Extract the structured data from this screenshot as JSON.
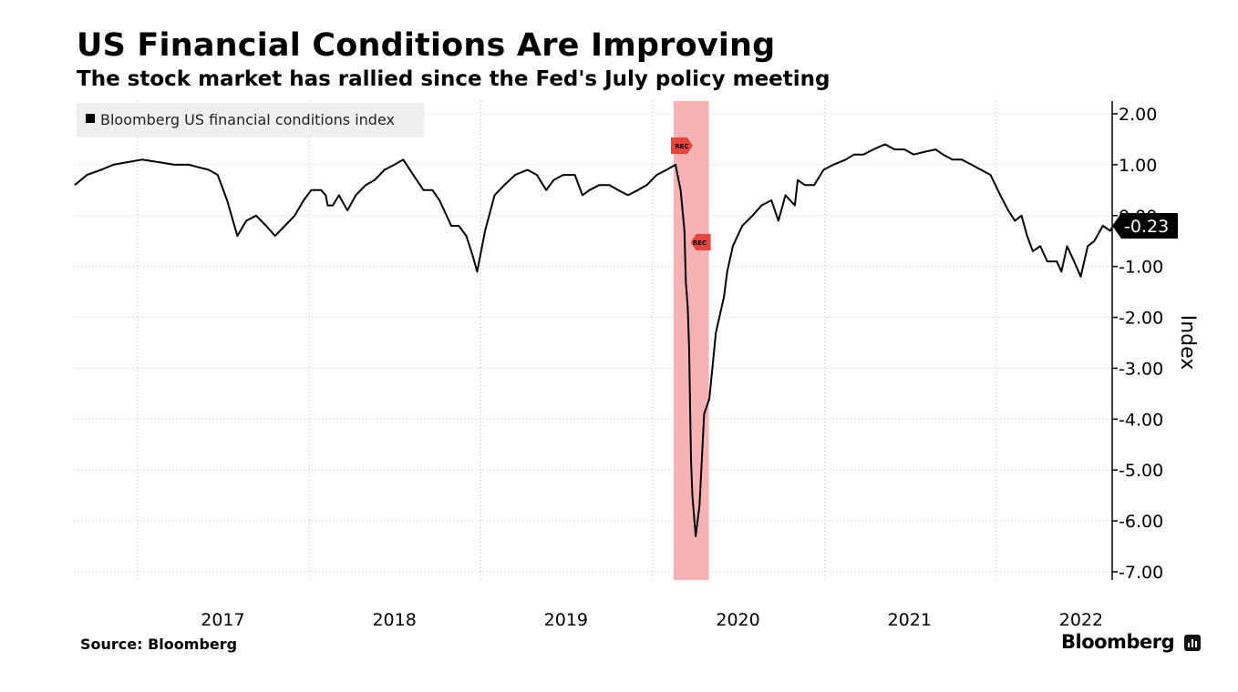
{
  "header": {
    "title": "US Financial Conditions Are Improving",
    "subtitle": "The stock market has rallied since the Fed's July policy meeting"
  },
  "footer": {
    "source": "Source: Bloomberg",
    "brand": "Bloomberg"
  },
  "chart_data": {
    "type": "line",
    "title": "US Financial Conditions Are Improving",
    "subtitle": "The stock market has rallied since the Fed's July policy meeting",
    "ylabel": "Index",
    "ylim": [
      -7,
      2
    ],
    "yticks": [
      2,
      1,
      0,
      -1,
      -2,
      -3,
      -4,
      -5,
      -6,
      -7
    ],
    "ytick_labels": [
      "2.00",
      "1.00",
      "0.00",
      "-1.00",
      "-2.00",
      "-3.00",
      "-4.00",
      "-5.00",
      "-6.00",
      "-7.00"
    ],
    "xlim": [
      "2016-08-20",
      "2022-09-05"
    ],
    "xticks": [
      "2017",
      "2018",
      "2019",
      "2020",
      "2021",
      "2022"
    ],
    "legend": {
      "position": "top-left",
      "entries": [
        "Bloomberg US financial conditions index"
      ]
    },
    "last_value_label": "-0.23",
    "recession": {
      "start": "2020-02-15",
      "end": "2020-04-30",
      "label": "REC"
    },
    "grid": true,
    "colors": {
      "line": "#000000",
      "recession": "#f7b3b3",
      "rec_marker": "#e8453c",
      "legend_bg": "#efefef"
    },
    "series": [
      {
        "name": "Bloomberg US financial conditions index",
        "x": [
          "2016-08-20",
          "2016-09-15",
          "2016-10-15",
          "2016-11-10",
          "2016-12-10",
          "2017-01-10",
          "2017-02-15",
          "2017-03-20",
          "2017-04-20",
          "2017-05-10",
          "2017-06-01",
          "2017-06-20",
          "2017-07-10",
          "2017-08-01",
          "2017-08-20",
          "2017-09-10",
          "2017-10-01",
          "2017-10-20",
          "2017-11-10",
          "2017-12-01",
          "2017-12-20",
          "2018-01-05",
          "2018-01-26",
          "2018-02-05",
          "2018-02-09",
          "2018-02-20",
          "2018-03-05",
          "2018-03-23",
          "2018-04-10",
          "2018-05-01",
          "2018-05-20",
          "2018-06-10",
          "2018-07-01",
          "2018-07-20",
          "2018-08-10",
          "2018-09-01",
          "2018-09-20",
          "2018-10-05",
          "2018-10-15",
          "2018-10-30",
          "2018-11-15",
          "2018-12-01",
          "2018-12-15",
          "2018-12-24",
          "2019-01-10",
          "2019-01-30",
          "2019-02-20",
          "2019-03-15",
          "2019-04-10",
          "2019-04-30",
          "2019-05-20",
          "2019-06-05",
          "2019-06-25",
          "2019-07-20",
          "2019-08-05",
          "2019-08-20",
          "2019-09-10",
          "2019-10-01",
          "2019-10-20",
          "2019-11-10",
          "2019-12-01",
          "2019-12-20",
          "2020-01-10",
          "2020-01-31",
          "2020-02-19",
          "2020-03-01",
          "2020-03-09",
          "2020-03-12",
          "2020-03-16",
          "2020-03-19",
          "2020-03-23",
          "2020-03-26",
          "2020-04-02",
          "2020-04-10",
          "2020-04-20",
          "2020-05-01",
          "2020-05-15",
          "2020-06-01",
          "2020-06-08",
          "2020-06-20",
          "2020-07-10",
          "2020-08-01",
          "2020-08-20",
          "2020-09-10",
          "2020-09-25",
          "2020-10-10",
          "2020-10-30",
          "2020-11-05",
          "2020-11-20",
          "2020-12-10",
          "2020-12-30",
          "2021-01-20",
          "2021-02-15",
          "2021-03-05",
          "2021-03-25",
          "2021-04-15",
          "2021-05-10",
          "2021-05-30",
          "2021-06-20",
          "2021-07-10",
          "2021-08-01",
          "2021-08-25",
          "2021-09-10",
          "2021-09-30",
          "2021-10-20",
          "2021-11-10",
          "2021-11-30",
          "2021-12-20",
          "2022-01-10",
          "2022-01-27",
          "2022-02-10",
          "2022-02-24",
          "2022-03-08",
          "2022-03-20",
          "2022-04-05",
          "2022-04-20",
          "2022-05-10",
          "2022-05-20",
          "2022-06-01",
          "2022-06-16",
          "2022-06-30",
          "2022-07-15",
          "2022-07-29",
          "2022-08-16",
          "2022-09-01",
          "2022-09-05"
        ],
        "y": [
          0.6,
          0.8,
          0.9,
          1.0,
          1.05,
          1.1,
          1.05,
          1.0,
          1.0,
          0.95,
          0.9,
          0.8,
          0.3,
          -0.4,
          -0.1,
          0.0,
          -0.2,
          -0.4,
          -0.2,
          0.0,
          0.3,
          0.5,
          0.5,
          0.4,
          0.2,
          0.2,
          0.4,
          0.1,
          0.4,
          0.6,
          0.7,
          0.9,
          1.0,
          1.1,
          0.8,
          0.5,
          0.5,
          0.3,
          0.1,
          -0.2,
          -0.2,
          -0.4,
          -0.8,
          -1.1,
          -0.3,
          0.4,
          0.6,
          0.8,
          0.9,
          0.8,
          0.5,
          0.7,
          0.8,
          0.8,
          0.4,
          0.5,
          0.6,
          0.6,
          0.5,
          0.4,
          0.5,
          0.6,
          0.8,
          0.9,
          1.0,
          0.5,
          -0.3,
          -1.3,
          -1.8,
          -2.6,
          -4.8,
          -5.5,
          -6.3,
          -5.7,
          -3.9,
          -3.6,
          -2.3,
          -1.6,
          -1.1,
          -0.6,
          -0.2,
          0.0,
          0.2,
          0.3,
          -0.1,
          0.4,
          0.2,
          0.7,
          0.6,
          0.6,
          0.9,
          1.0,
          1.1,
          1.2,
          1.2,
          1.3,
          1.4,
          1.3,
          1.3,
          1.2,
          1.25,
          1.3,
          1.2,
          1.1,
          1.1,
          1.0,
          0.9,
          0.8,
          0.4,
          0.1,
          -0.1,
          0.0,
          -0.4,
          -0.7,
          -0.6,
          -0.9,
          -0.9,
          -1.1,
          -0.6,
          -0.9,
          -1.2,
          -0.6,
          -0.5,
          -0.2,
          -0.3,
          -0.23
        ]
      }
    ]
  }
}
